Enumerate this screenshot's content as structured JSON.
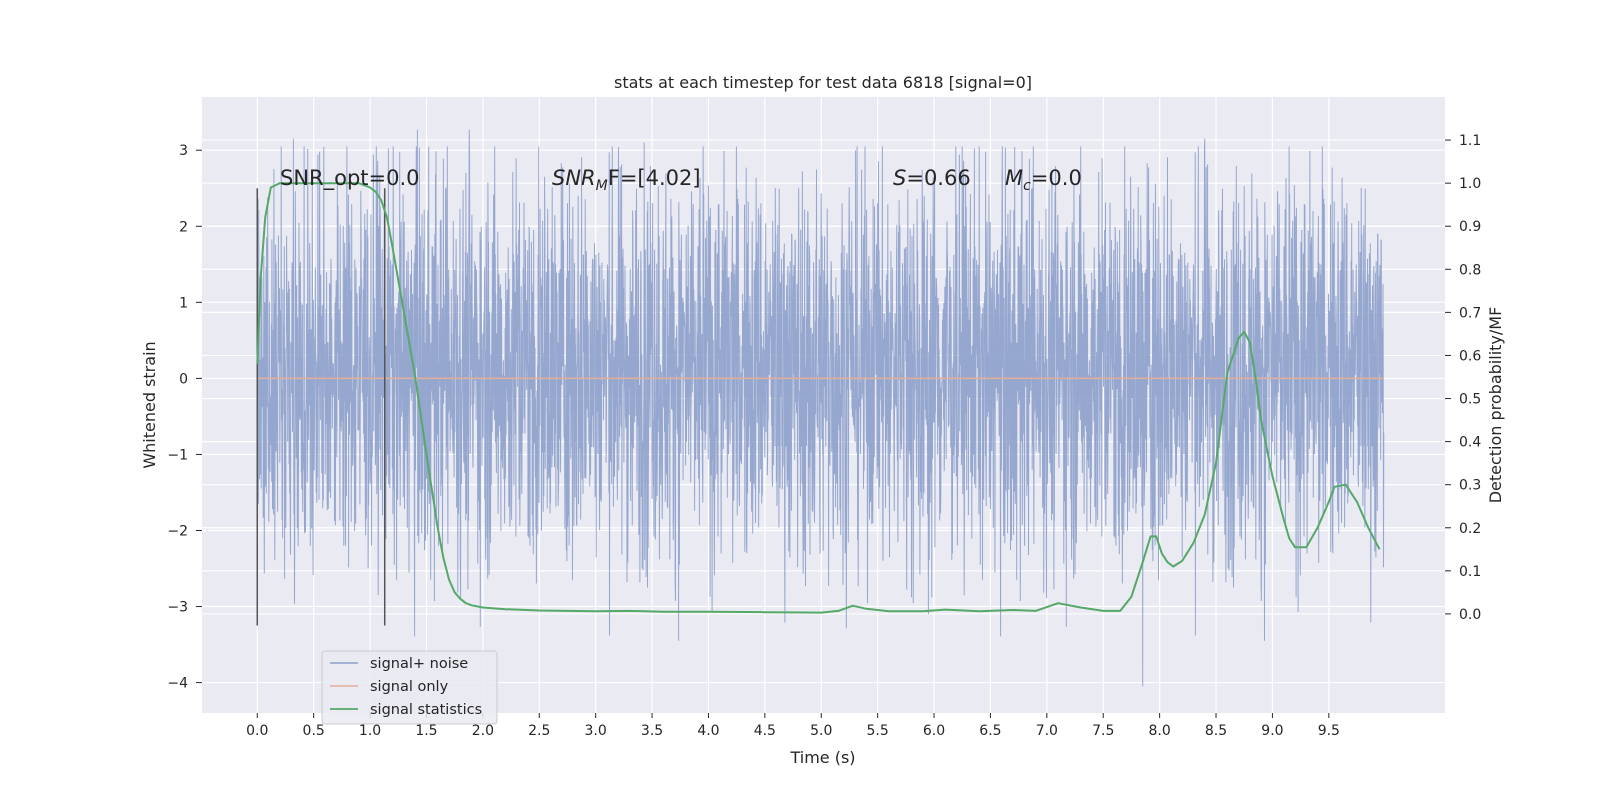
{
  "chart_data": {
    "type": "line",
    "title": "stats at each timestep for test data 6818 [signal=0]",
    "xlabel": "Time (s)",
    "ylabel": "Whitened strain",
    "y2label": "Detection probability/MF",
    "xlim": [
      -0.49,
      10.53
    ],
    "ylim": [
      -4.4,
      3.7
    ],
    "y2lim": [
      -0.23,
      1.2
    ],
    "x_ticks": [
      0.0,
      0.5,
      1.0,
      1.5,
      2.0,
      2.5,
      3.0,
      3.5,
      4.0,
      4.5,
      5.0,
      5.5,
      6.0,
      6.5,
      7.0,
      7.5,
      8.0,
      8.5,
      9.0,
      9.5
    ],
    "x_tick_labels": [
      "0.0",
      "0.5",
      "1.0",
      "1.5",
      "2.0",
      "2.5",
      "3.0",
      "3.5",
      "4.0",
      "4.5",
      "5.0",
      "5.5",
      "6.0",
      "6.5",
      "7.0",
      "7.5",
      "8.0",
      "8.5",
      "9.0",
      "9.5"
    ],
    "y_ticks": [
      3,
      2,
      1,
      0,
      -1,
      -2,
      -3,
      -4
    ],
    "y_tick_labels": [
      "3",
      "2",
      "1",
      "0",
      "−1",
      "−2",
      "−3",
      "−4"
    ],
    "y2_ticks": [
      1.1,
      1.0,
      0.9,
      0.8,
      0.7,
      0.6,
      0.5,
      0.4,
      0.3,
      0.2,
      0.1,
      0.0
    ],
    "y2_tick_labels": [
      "1.1",
      "1.0",
      "0.9",
      "0.8",
      "0.7",
      "0.6",
      "0.5",
      "0.4",
      "0.3",
      "0.2",
      "0.1",
      "0.0"
    ],
    "grid": true,
    "legend_position": "lower-left",
    "annotations": {
      "snr_opt": "SNR_opt=0.0",
      "snr_mf_italic": "SNR",
      "snr_mf_sub": "M",
      "snr_mf_rest": "F=[4.02]",
      "s_italic": "S",
      "s_rest": "=0.66",
      "mc_italic": "M",
      "mc_sub": "c",
      "mc_rest": "=0.0"
    },
    "vertical_markers": [
      {
        "x": 0.0,
        "y_range": [
          -3.25,
          2.5
        ]
      },
      {
        "x": 1.13,
        "y_range": [
          -3.25,
          2.5
        ]
      }
    ],
    "series": [
      {
        "name": "signal+ noise",
        "color": "#8da0cb",
        "style": "dense noisy trace",
        "x_range": [
          0.0,
          9.99
        ],
        "sampling_rate_hz": 400,
        "typical_envelope": [
          -1.55,
          1.85
        ],
        "extreme_range": [
          -4.05,
          3.3
        ],
        "notable_spikes": [
          {
            "x": 0.32,
            "y": 3.15
          },
          {
            "x": 1.42,
            "y": 3.27
          },
          {
            "x": 1.88,
            "y": 3.27
          },
          {
            "x": 3.43,
            "y": 3.1
          },
          {
            "x": 8.4,
            "y": 3.15
          },
          {
            "x": 5.95,
            "y": -3.1
          },
          {
            "x": 7.85,
            "y": -4.05
          }
        ]
      },
      {
        "name": "signal only",
        "color": "#e5ae98",
        "x": [
          0.0,
          9.99
        ],
        "y": [
          0.0,
          0.0
        ]
      },
      {
        "name": "signal statistics",
        "color": "#55a868",
        "axis": "right",
        "x": [
          0.0,
          0.03,
          0.07,
          0.12,
          0.2,
          0.3,
          0.4,
          0.5,
          0.6,
          0.7,
          0.8,
          0.9,
          1.0,
          1.05,
          1.1,
          1.15,
          1.2,
          1.3,
          1.4,
          1.5,
          1.6,
          1.65,
          1.7,
          1.75,
          1.8,
          1.85,
          1.9,
          2.0,
          2.2,
          2.5,
          3.0,
          3.3,
          3.6,
          4.0,
          4.5,
          5.0,
          5.15,
          5.28,
          5.4,
          5.6,
          5.9,
          6.1,
          6.4,
          6.7,
          6.9,
          7.1,
          7.3,
          7.5,
          7.65,
          7.75,
          7.85,
          7.92,
          7.97,
          8.02,
          8.07,
          8.12,
          8.2,
          8.3,
          8.4,
          8.5,
          8.6,
          8.7,
          8.75,
          8.8,
          8.85,
          8.9,
          9.0,
          9.1,
          9.15,
          9.2,
          9.3,
          9.4,
          9.5,
          9.55,
          9.65,
          9.75,
          9.85,
          9.95
        ],
        "y": [
          0.58,
          0.78,
          0.92,
          0.99,
          1.0,
          1.0,
          1.0,
          1.0,
          1.0,
          1.0,
          1.0,
          1.0,
          0.99,
          0.98,
          0.96,
          0.92,
          0.85,
          0.7,
          0.55,
          0.37,
          0.2,
          0.13,
          0.08,
          0.05,
          0.035,
          0.025,
          0.02,
          0.015,
          0.011,
          0.008,
          0.006,
          0.007,
          0.005,
          0.005,
          0.004,
          0.003,
          0.007,
          0.019,
          0.012,
          0.006,
          0.006,
          0.01,
          0.006,
          0.009,
          0.007,
          0.025,
          0.015,
          0.007,
          0.007,
          0.04,
          0.12,
          0.18,
          0.18,
          0.14,
          0.12,
          0.11,
          0.123,
          0.165,
          0.23,
          0.35,
          0.56,
          0.64,
          0.655,
          0.63,
          0.55,
          0.45,
          0.32,
          0.22,
          0.175,
          0.155,
          0.155,
          0.2,
          0.26,
          0.295,
          0.3,
          0.26,
          0.2,
          0.15
        ]
      }
    ]
  }
}
